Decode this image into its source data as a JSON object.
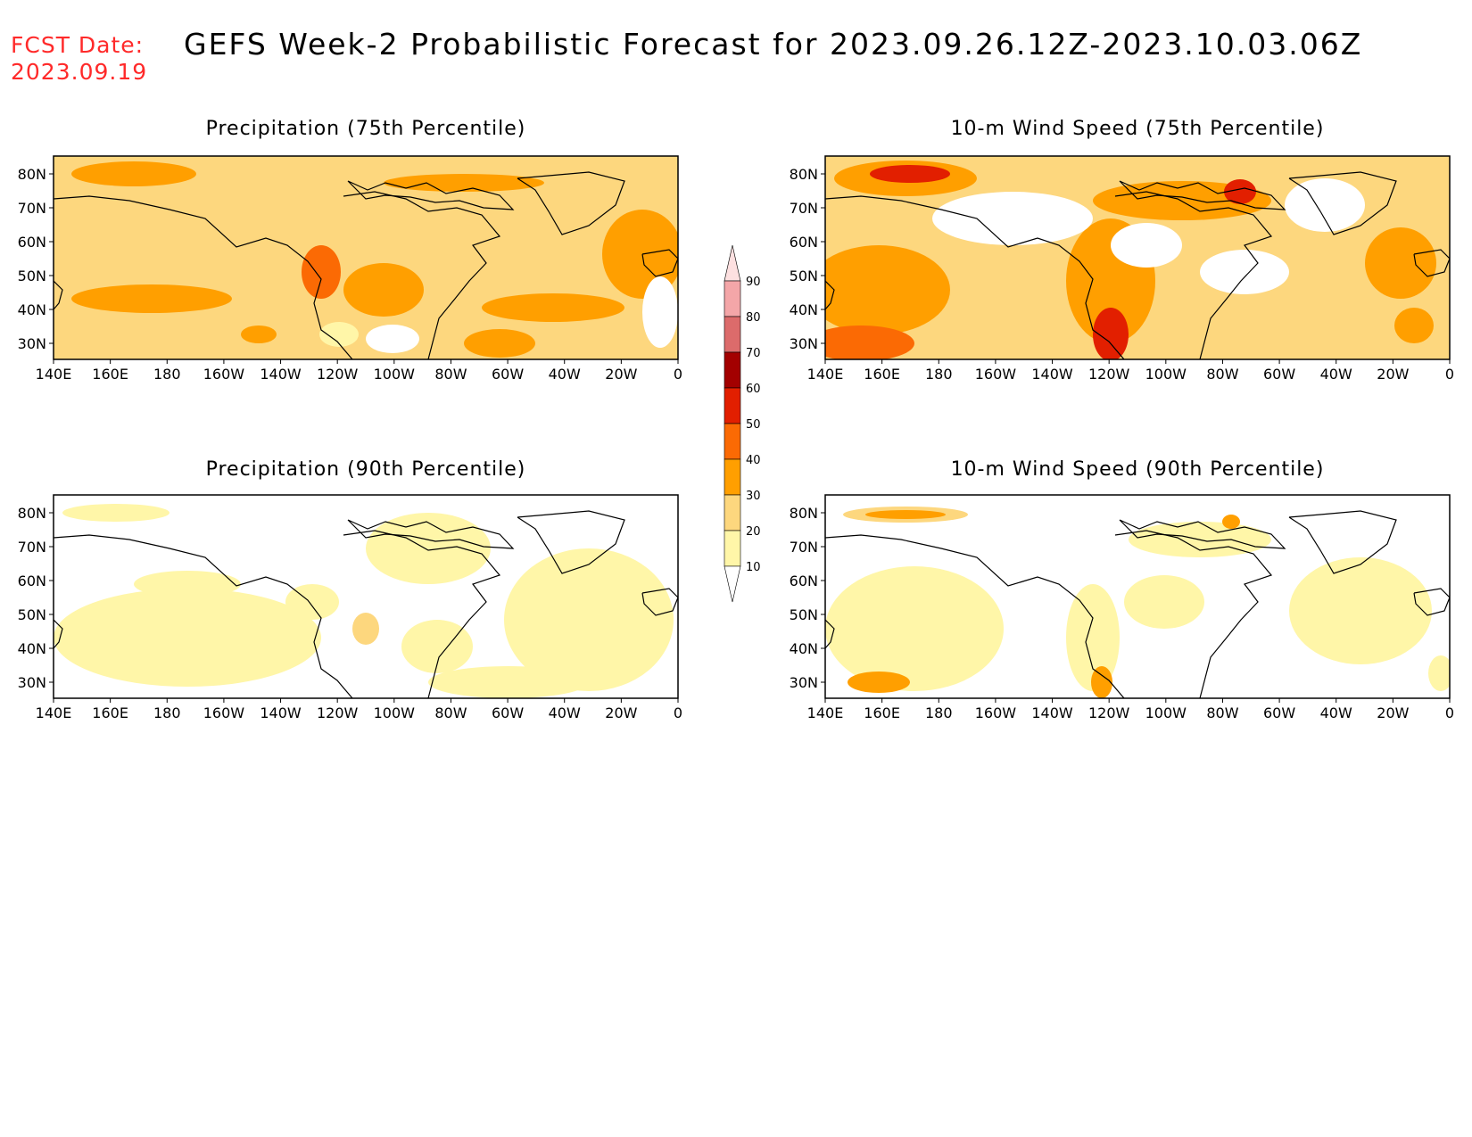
{
  "header": {
    "fcst_label": "FCST Date:",
    "fcst_date": "2023.09.19",
    "title": "GEFS Week-2 Probabilistic Forecast for 2023.09.26.12Z-2023.10.03.06Z"
  },
  "axes": {
    "lon_ticks": [
      "140E",
      "160E",
      "180",
      "160W",
      "140W",
      "120W",
      "100W",
      "80W",
      "60W",
      "40W",
      "20W",
      "0"
    ],
    "lat_ticks": [
      "80N",
      "70N",
      "60N",
      "50N",
      "40N",
      "30N"
    ]
  },
  "panels": [
    {
      "id": "precip75",
      "title": "Precipitation (75th Percentile)"
    },
    {
      "id": "wind75",
      "title": "10-m Wind Speed (75th Percentile)"
    },
    {
      "id": "precip90",
      "title": "Precipitation (90th Percentile)"
    },
    {
      "id": "wind90",
      "title": "10-m Wind Speed (90th Percentile)"
    }
  ],
  "colorbar": {
    "levels": [
      "90",
      "80",
      "70",
      "60",
      "50",
      "40",
      "30",
      "20",
      "10"
    ],
    "colors": [
      "#f4a6a8",
      "#dc6b6b",
      "#a30000",
      "#e21f00",
      "#fb6a04",
      "#ff9f00",
      "#fdd77e",
      "#fff6a8"
    ]
  }
}
